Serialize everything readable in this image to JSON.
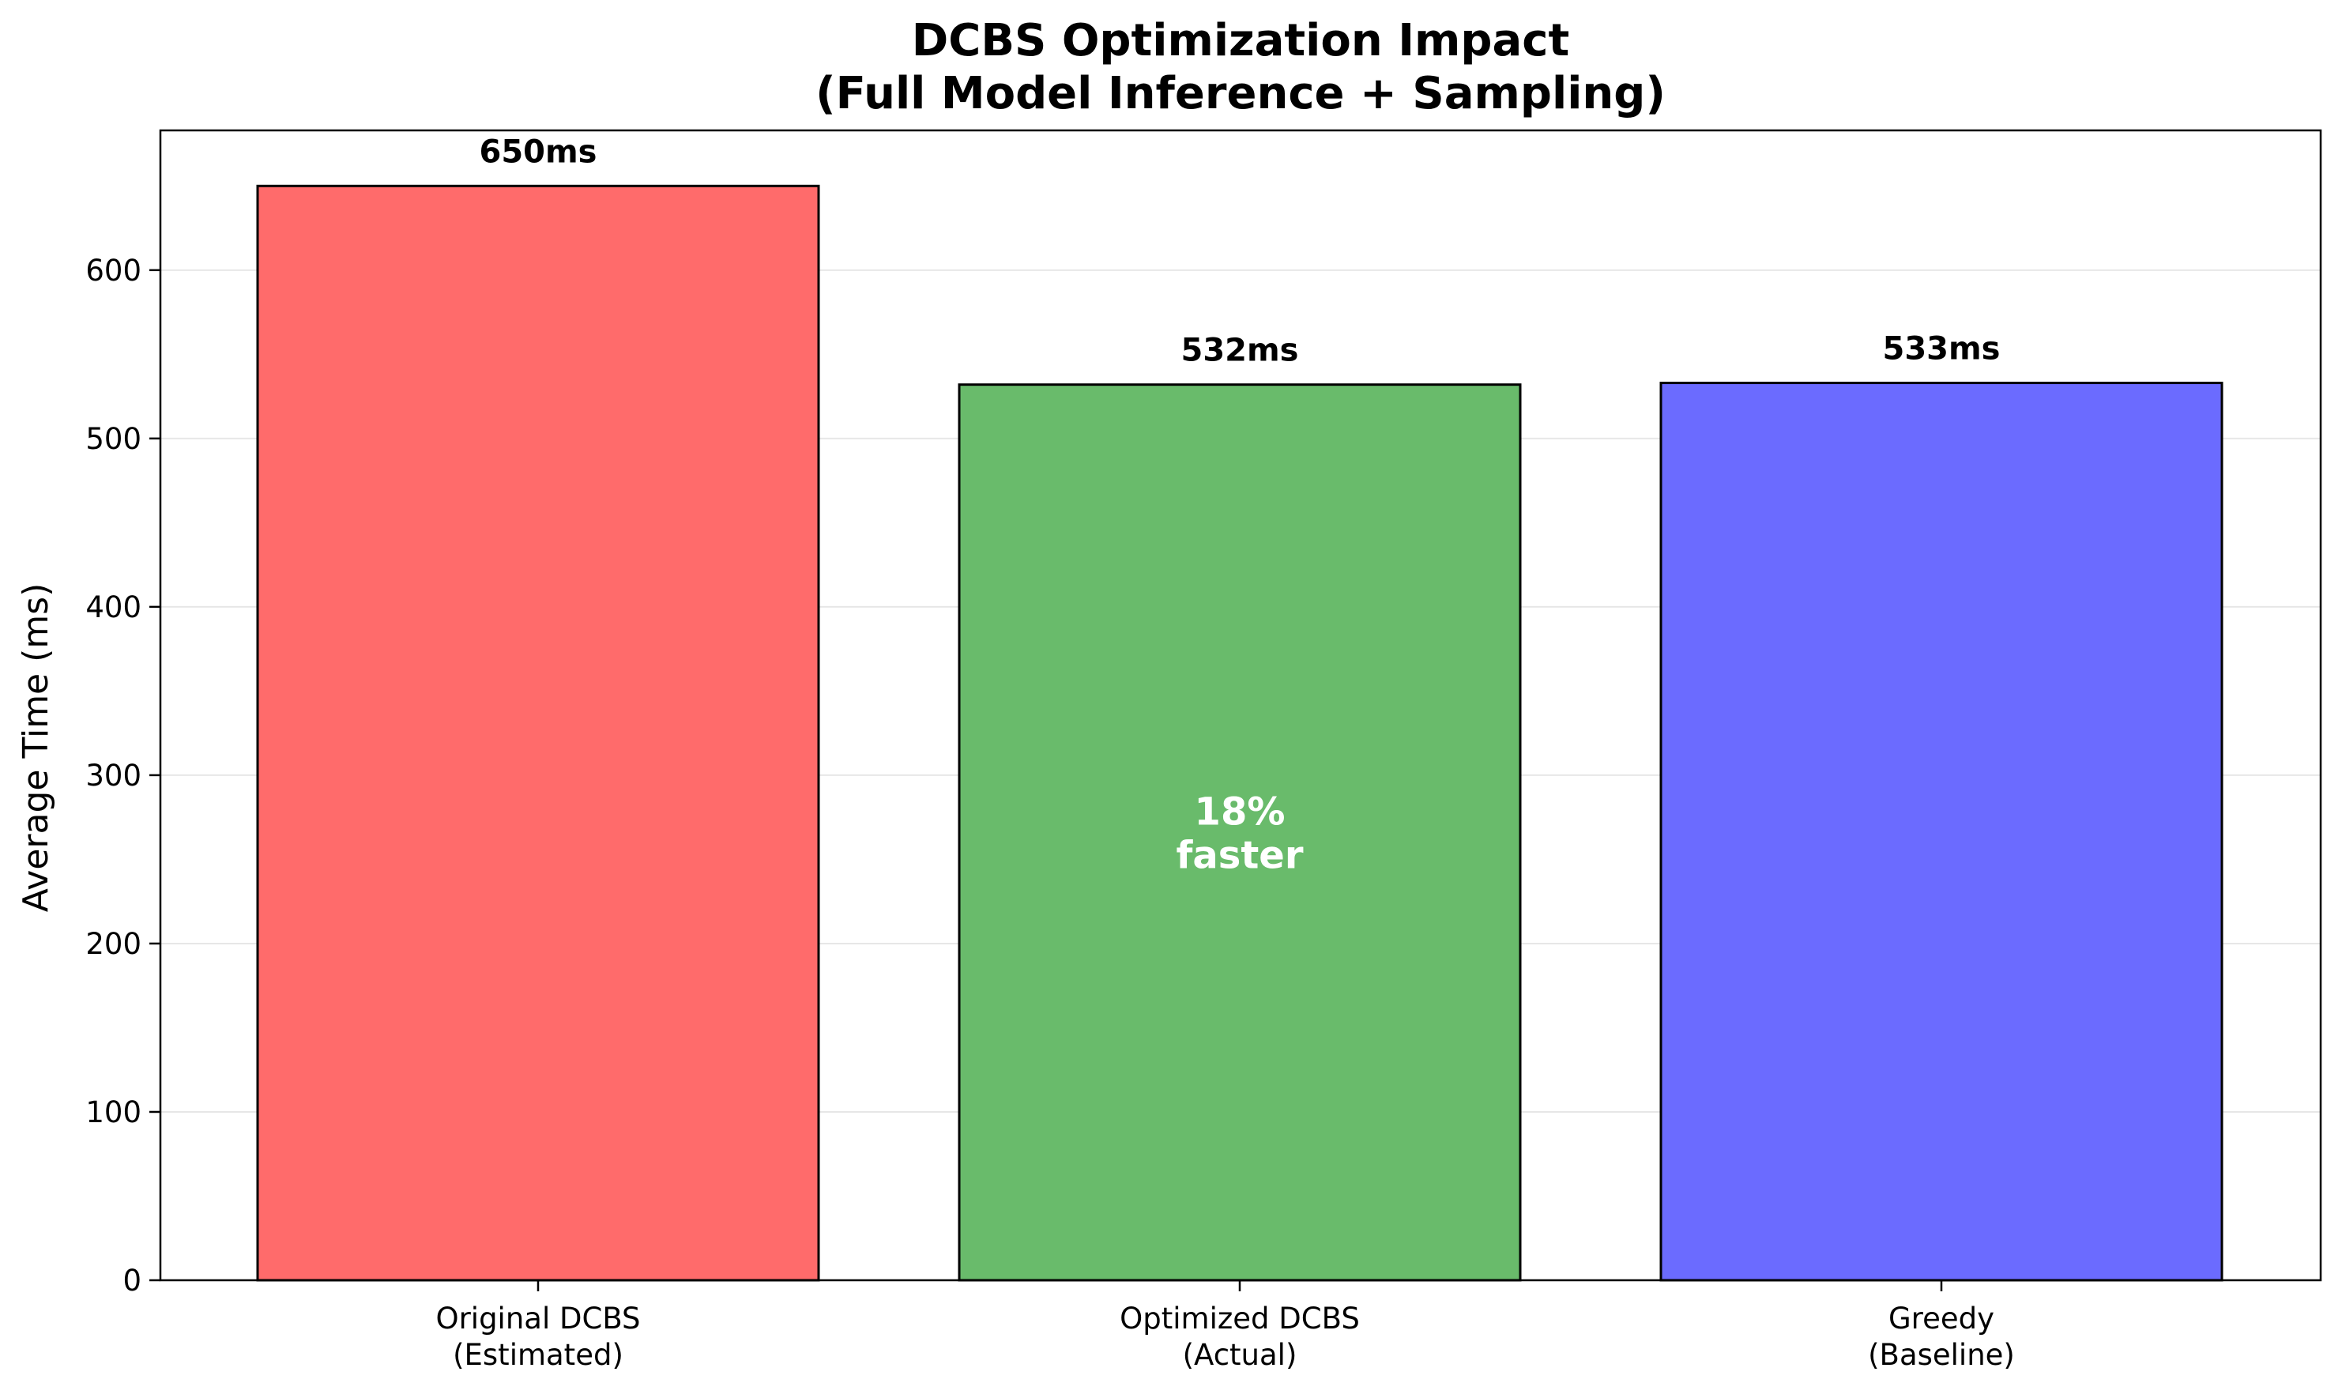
{
  "chart_data": {
    "type": "bar",
    "title": [
      "DCBS Optimization Impact",
      "(Full Model Inference + Sampling)"
    ],
    "ylabel": "Average Time (ms)",
    "xlabel": "",
    "categories": [
      [
        "Original DCBS",
        "(Estimated)"
      ],
      [
        "Optimized DCBS",
        "(Actual)"
      ],
      [
        "Greedy",
        "(Baseline)"
      ]
    ],
    "values": [
      650,
      532,
      533
    ],
    "value_labels": [
      "650ms",
      "532ms",
      "533ms"
    ],
    "colors": [
      "#ff6b6b",
      "#69bb6b",
      "#6b6bff"
    ],
    "ylim": [
      0,
      683
    ],
    "yticks": [
      0,
      100,
      200,
      300,
      400,
      500,
      600
    ],
    "grid": "y",
    "annotation": {
      "bar_index": 1,
      "lines": [
        "18%",
        "faster"
      ],
      "y_value": 266
    }
  }
}
